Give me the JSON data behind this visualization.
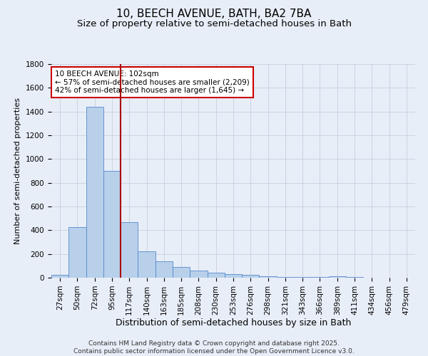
{
  "title": "10, BEECH AVENUE, BATH, BA2 7BA",
  "subtitle": "Size of property relative to semi-detached houses in Bath",
  "xlabel": "Distribution of semi-detached houses by size in Bath",
  "ylabel": "Number of semi-detached properties",
  "categories": [
    "27sqm",
    "50sqm",
    "72sqm",
    "95sqm",
    "117sqm",
    "140sqm",
    "163sqm",
    "185sqm",
    "208sqm",
    "230sqm",
    "253sqm",
    "276sqm",
    "298sqm",
    "321sqm",
    "343sqm",
    "366sqm",
    "389sqm",
    "411sqm",
    "434sqm",
    "456sqm",
    "479sqm"
  ],
  "values": [
    25,
    425,
    1440,
    900,
    470,
    220,
    140,
    90,
    58,
    45,
    30,
    22,
    15,
    8,
    5,
    4,
    15,
    8,
    2,
    3,
    2
  ],
  "bar_color": "#b8d0ea",
  "bar_edge_color": "#5588cc",
  "red_line_x": 3.5,
  "red_line_color": "#aa0000",
  "annotation_box_text": "10 BEECH AVENUE: 102sqm\n← 57% of semi-detached houses are smaller (2,209)\n42% of semi-detached houses are larger (1,645) →",
  "ylim": [
    0,
    1800
  ],
  "yticks": [
    0,
    200,
    400,
    600,
    800,
    1000,
    1200,
    1400,
    1600,
    1800
  ],
  "background_color": "#e8eef8",
  "grid_color": "#c8d0dc",
  "footnote": "Contains HM Land Registry data © Crown copyright and database right 2025.\nContains public sector information licensed under the Open Government Licence v3.0.",
  "title_fontsize": 11,
  "subtitle_fontsize": 9.5,
  "xlabel_fontsize": 9,
  "ylabel_fontsize": 8,
  "tick_fontsize": 7.5,
  "annotation_fontsize": 7.5,
  "footnote_fontsize": 6.5
}
